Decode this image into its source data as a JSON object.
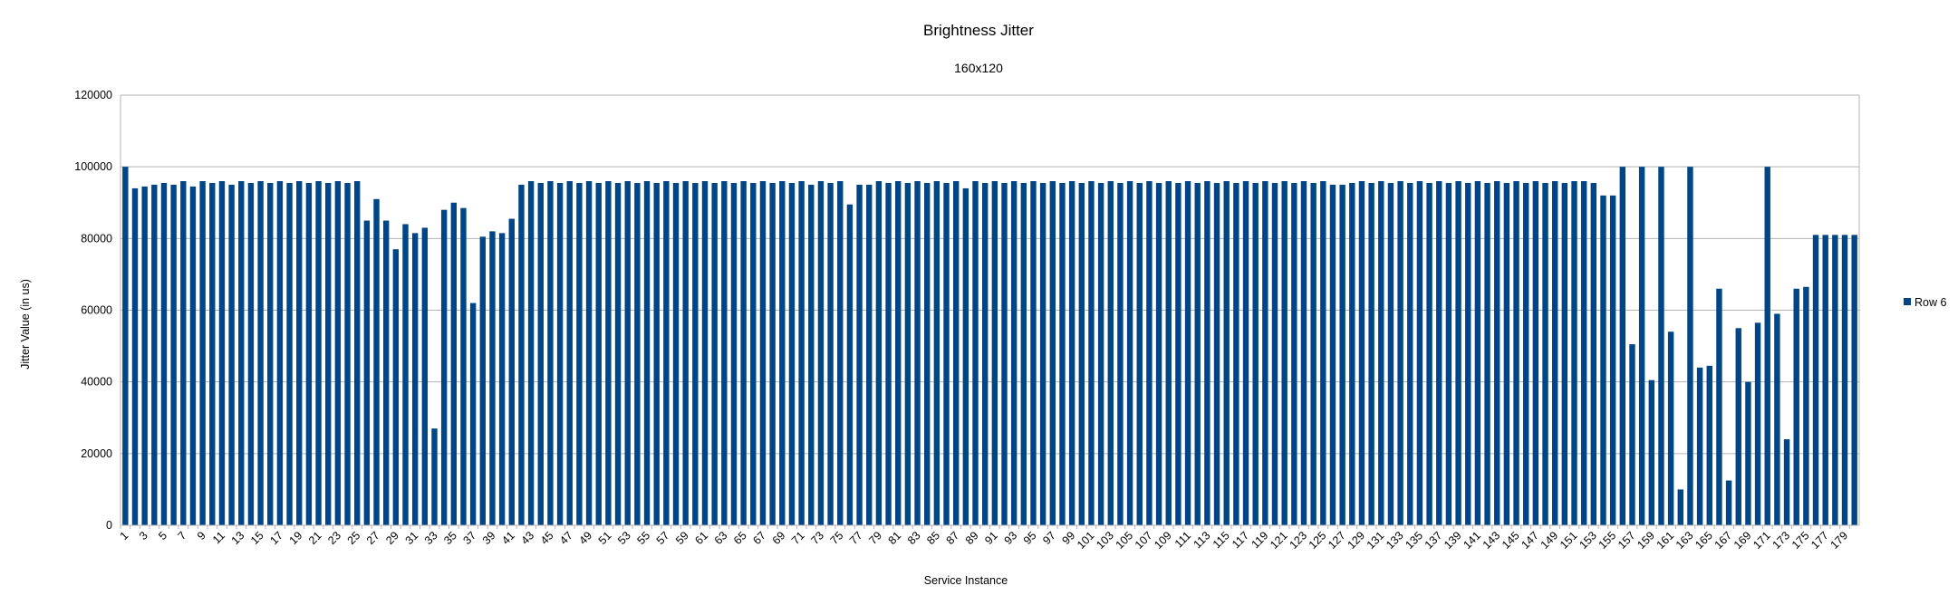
{
  "chart_data": {
    "type": "bar",
    "title": "Brightness Jitter",
    "subtitle": "160x120",
    "xlabel": "Service Instance",
    "ylabel": "Jitter Value (in us)",
    "ylim": [
      0,
      120000
    ],
    "yticks": [
      0,
      20000,
      40000,
      60000,
      80000,
      100000,
      120000
    ],
    "grid": true,
    "legend_position": "right",
    "color": "#004586",
    "categories": [
      1,
      2,
      3,
      4,
      5,
      6,
      7,
      8,
      9,
      10,
      11,
      12,
      13,
      14,
      15,
      16,
      17,
      18,
      19,
      20,
      21,
      22,
      23,
      24,
      25,
      26,
      27,
      28,
      29,
      30,
      31,
      32,
      33,
      34,
      35,
      36,
      37,
      38,
      39,
      40,
      41,
      42,
      43,
      44,
      45,
      46,
      47,
      48,
      49,
      50,
      51,
      52,
      53,
      54,
      55,
      56,
      57,
      58,
      59,
      60,
      61,
      62,
      63,
      64,
      65,
      66,
      67,
      68,
      69,
      70,
      71,
      72,
      73,
      74,
      75,
      76,
      77,
      78,
      79,
      80,
      81,
      82,
      83,
      84,
      85,
      86,
      87,
      88,
      89,
      90,
      91,
      92,
      93,
      94,
      95,
      96,
      97,
      98,
      99,
      100,
      101,
      102,
      103,
      104,
      105,
      106,
      107,
      108,
      109,
      110,
      111,
      112,
      113,
      114,
      115,
      116,
      117,
      118,
      119,
      120,
      121,
      122,
      123,
      124,
      125,
      126,
      127,
      128,
      129,
      130,
      131,
      132,
      133,
      134,
      135,
      136,
      137,
      138,
      139,
      140,
      141,
      142,
      143,
      144,
      145,
      146,
      147,
      148,
      149,
      150,
      151,
      152,
      153,
      154,
      155,
      156,
      157,
      158,
      159,
      160,
      161,
      162,
      163,
      164,
      165,
      166,
      167,
      168,
      169,
      170,
      171,
      172,
      173,
      174,
      175,
      176,
      177,
      178,
      179,
      180
    ],
    "series": [
      {
        "name": "Row 6",
        "values": [
          100000,
          94000,
          94500,
          95000,
          95500,
          95000,
          96000,
          94500,
          96000,
          95500,
          96000,
          95000,
          96000,
          95500,
          96000,
          95500,
          96000,
          95500,
          96000,
          95500,
          96000,
          95500,
          96000,
          95500,
          96000,
          85000,
          91000,
          85000,
          77000,
          84000,
          81500,
          83000,
          27000,
          88000,
          90000,
          88500,
          62000,
          80500,
          82000,
          81500,
          85500,
          95000,
          96000,
          95500,
          96000,
          95500,
          96000,
          95500,
          96000,
          95500,
          96000,
          95500,
          96000,
          95500,
          96000,
          95500,
          96000,
          95500,
          96000,
          95500,
          96000,
          95500,
          96000,
          95500,
          96000,
          95500,
          96000,
          95500,
          96000,
          95500,
          96000,
          95000,
          96000,
          95500,
          96000,
          89500,
          95000,
          95000,
          96000,
          95500,
          96000,
          95500,
          96000,
          95500,
          96000,
          95500,
          96000,
          94000,
          96000,
          95500,
          96000,
          95500,
          96000,
          95500,
          96000,
          95500,
          96000,
          95500,
          96000,
          95500,
          96000,
          95500,
          96000,
          95500,
          96000,
          95500,
          96000,
          95500,
          96000,
          95500,
          96000,
          95500,
          96000,
          95500,
          96000,
          95500,
          96000,
          95500,
          96000,
          95500,
          96000,
          95500,
          96000,
          95500,
          96000,
          95000,
          95000,
          95500,
          96000,
          95500,
          96000,
          95500,
          96000,
          95500,
          96000,
          95500,
          96000,
          95500,
          96000,
          95500,
          96000,
          95500,
          96000,
          95500,
          96000,
          95500,
          96000,
          95500,
          96000,
          95500,
          96000,
          96000,
          95500,
          92000,
          92000,
          100000,
          50500,
          100000,
          40500,
          100000,
          54000,
          10000,
          100000,
          44000,
          44500,
          66000,
          12500,
          55000,
          40000,
          56500,
          100000,
          59000,
          24000,
          66000,
          66500,
          81000,
          81000,
          81000,
          81000,
          81000
        ]
      }
    ]
  }
}
